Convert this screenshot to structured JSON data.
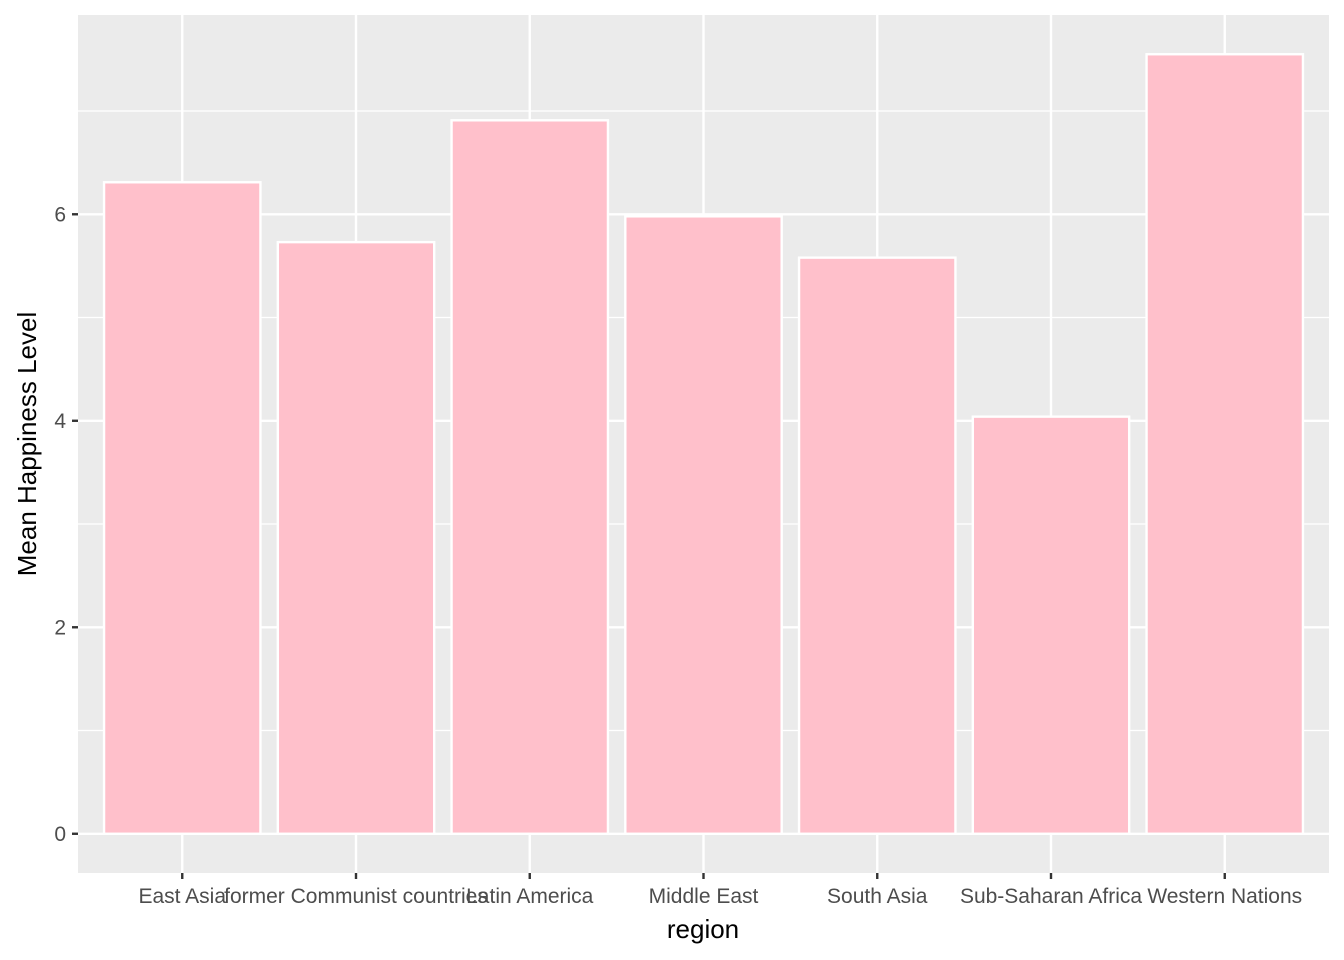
{
  "chart_data": {
    "type": "bar",
    "categories": [
      "East Asia",
      "former Communist countries",
      "Latin America",
      "Middle East",
      "South Asia",
      "Sub-Saharan Africa",
      "Western Nations"
    ],
    "values": [
      6.31,
      5.73,
      6.91,
      5.98,
      5.58,
      4.04,
      7.55
    ],
    "xlabel": "region",
    "ylabel": "Mean Happiness Level",
    "ylim": [
      -0.38,
      7.93
    ],
    "yticks": [
      0,
      2,
      4,
      6
    ],
    "grid": true,
    "legend": "none",
    "colors": {
      "bar_fill": "#FFC0CB",
      "bar_stroke": "#FFFFFF",
      "panel_bg": "#EBEBEB",
      "grid": "#FFFFFF",
      "tick_text": "#4D4D4D",
      "tick_mark": "#333333",
      "title_text": "#000000"
    }
  }
}
